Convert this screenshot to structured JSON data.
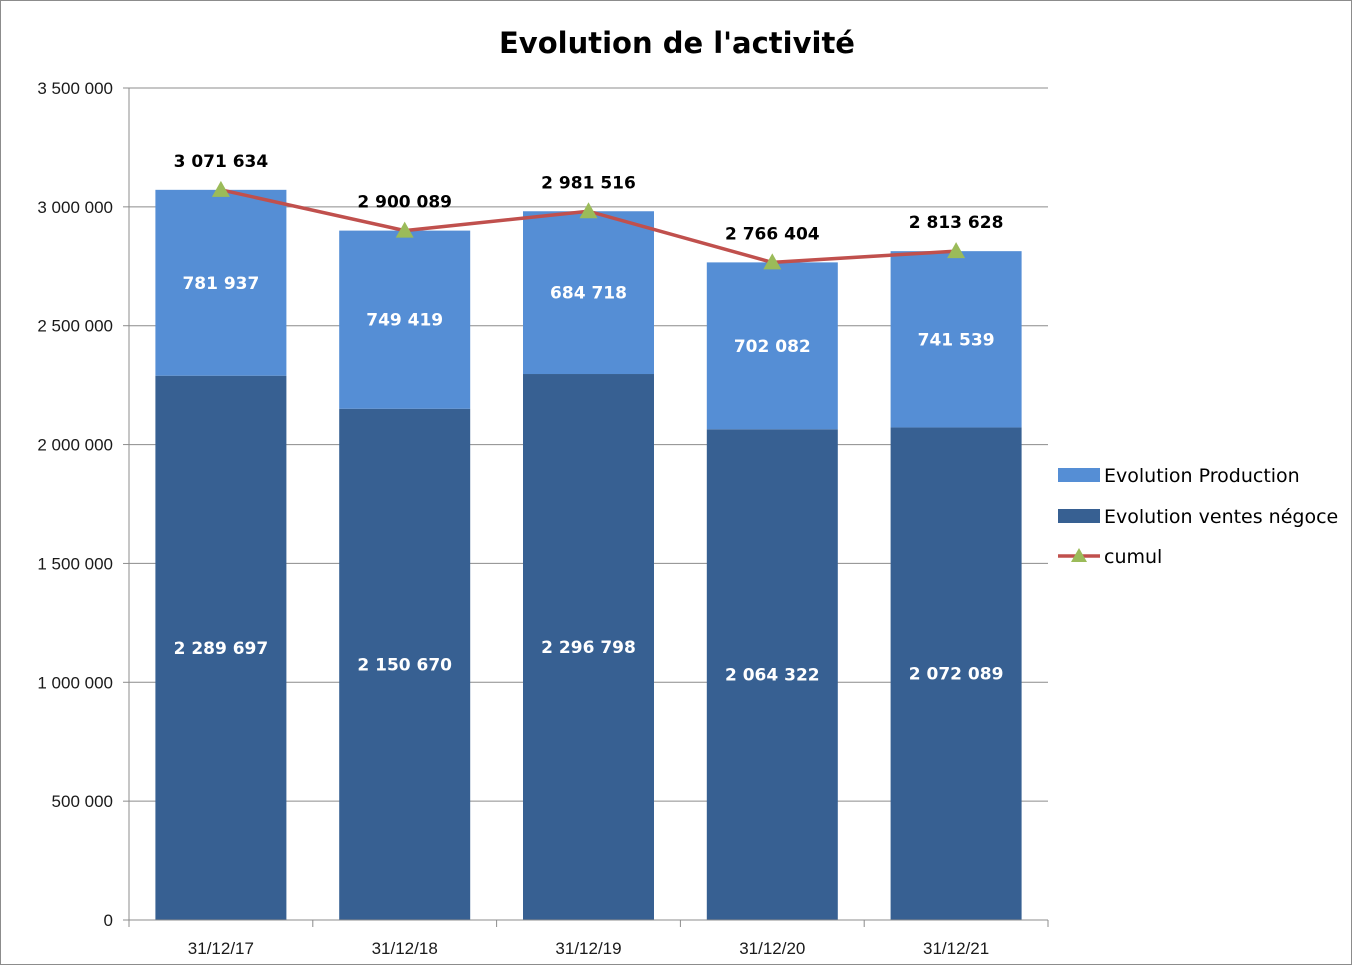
{
  "chart_data": {
    "type": "bar",
    "stacked": true,
    "title": "Evolution de l'activité",
    "xlabel": "",
    "ylabel": "",
    "categories": [
      "31/12/17",
      "31/12/18",
      "31/12/19",
      "31/12/20",
      "31/12/21"
    ],
    "ylim": [
      0,
      3500000
    ],
    "yticks": [
      0,
      500000,
      1000000,
      1500000,
      2000000,
      2500000,
      3000000,
      3500000
    ],
    "ytick_labels": [
      "0",
      "500 000",
      "1 000 000",
      "1 500 000",
      "2 000 000",
      "2 500 000",
      "3 000 000",
      "3 500 000"
    ],
    "grid": true,
    "legend_position": "right",
    "series": [
      {
        "name": "Evolution ventes négoce",
        "type": "bar",
        "color": "#376092",
        "values": [
          2289697,
          2150670,
          2296798,
          2064322,
          2072089
        ],
        "labels": [
          "2 289 697",
          "2 150 670",
          "2 296 798",
          "2 064 322",
          "2 072 089"
        ]
      },
      {
        "name": "Evolution Production",
        "type": "bar",
        "color": "#558ed5",
        "values": [
          781937,
          749419,
          684718,
          702082,
          741539
        ],
        "labels": [
          "781 937",
          "749 419",
          "684 718",
          "702 082",
          "741 539"
        ]
      },
      {
        "name": "cumul",
        "type": "line",
        "color": "#c0504d",
        "marker": "triangle",
        "marker_color": "#9bbb59",
        "values": [
          3071634,
          2900089,
          2981516,
          2766404,
          2813628
        ],
        "labels": [
          "3 071 634",
          "2 900 089",
          "2 981 516",
          "2 766 404",
          "2 813 628"
        ]
      }
    ],
    "legend": [
      "Evolution Production",
      "Evolution ventes négoce",
      "cumul"
    ]
  }
}
